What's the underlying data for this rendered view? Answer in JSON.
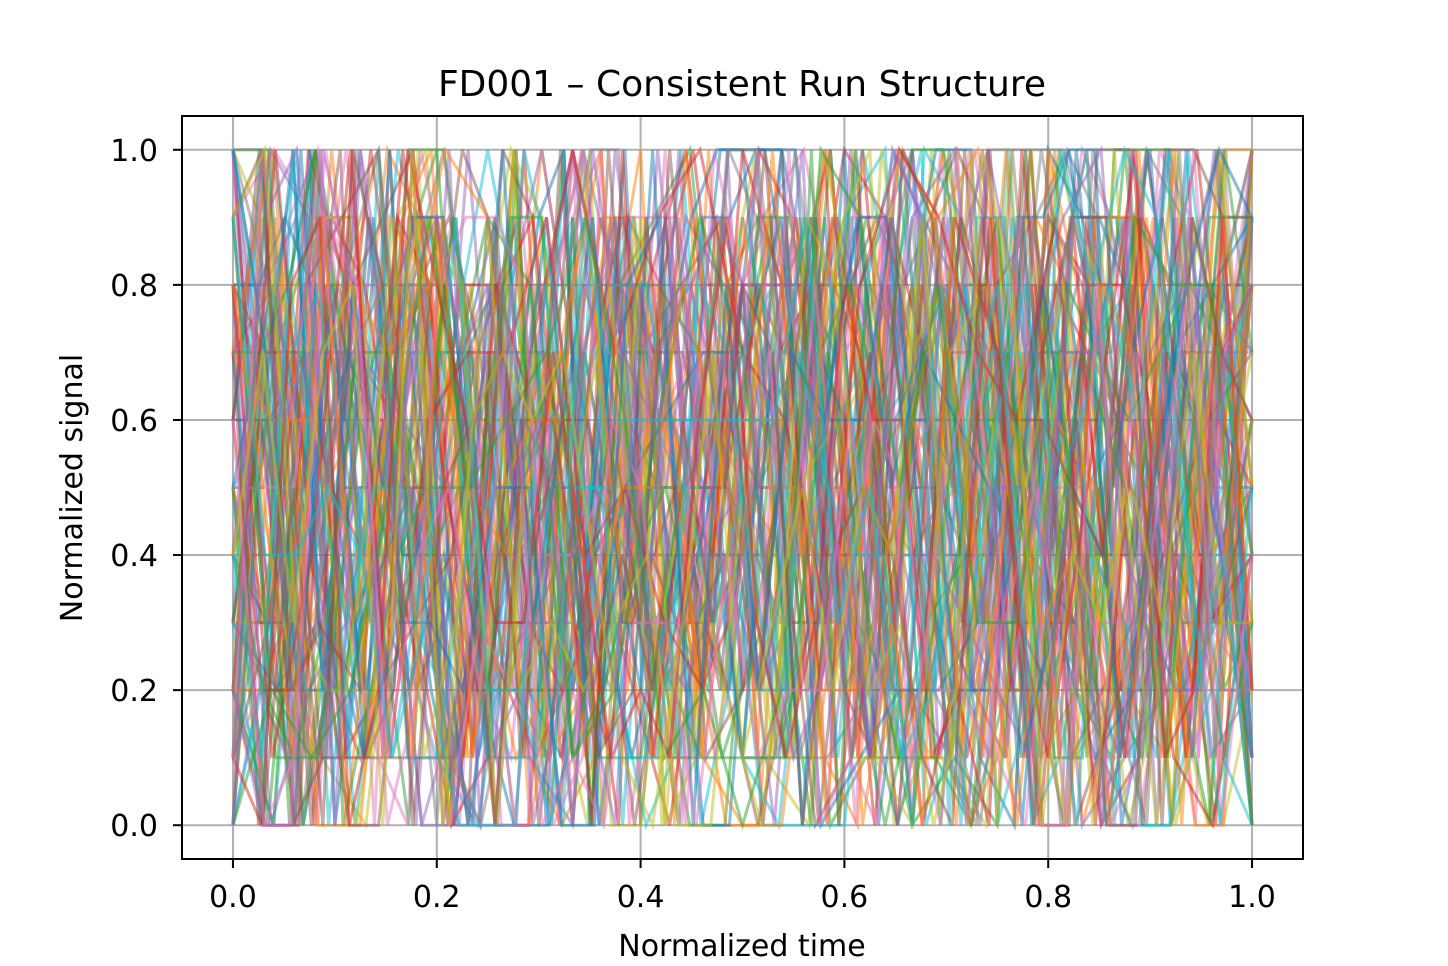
{
  "chart_data": {
    "type": "line",
    "title": "FD001 – Consistent Run Structure",
    "xlabel": "Normalized time",
    "ylabel": "Normalized signal",
    "xlim": [
      -0.05,
      1.05
    ],
    "ylim": [
      -0.05,
      1.05
    ],
    "xticks": [
      0.0,
      0.2,
      0.4,
      0.6,
      0.8,
      1.0
    ],
    "xtick_labels": [
      "0.0",
      "0.2",
      "0.4",
      "0.6",
      "0.8",
      "1.0"
    ],
    "yticks": [
      0.0,
      0.2,
      0.4,
      0.6,
      0.8,
      1.0
    ],
    "ytick_labels": [
      "0.0",
      "0.2",
      "0.4",
      "0.6",
      "0.8",
      "1.0"
    ],
    "grid": true,
    "legend": "none",
    "series_count": 100,
    "value_levels": [
      0.0,
      0.1,
      0.2,
      0.3,
      0.4,
      0.5,
      0.6,
      0.7,
      0.8,
      0.9,
      1.0
    ],
    "series_alpha": 0.5,
    "colors": [
      "#1f77b4",
      "#ff7f0e",
      "#2ca02c",
      "#d62728",
      "#9467bd",
      "#8c564b",
      "#e377c2",
      "#7f7f7f",
      "#bcbd22",
      "#17becf"
    ]
  }
}
